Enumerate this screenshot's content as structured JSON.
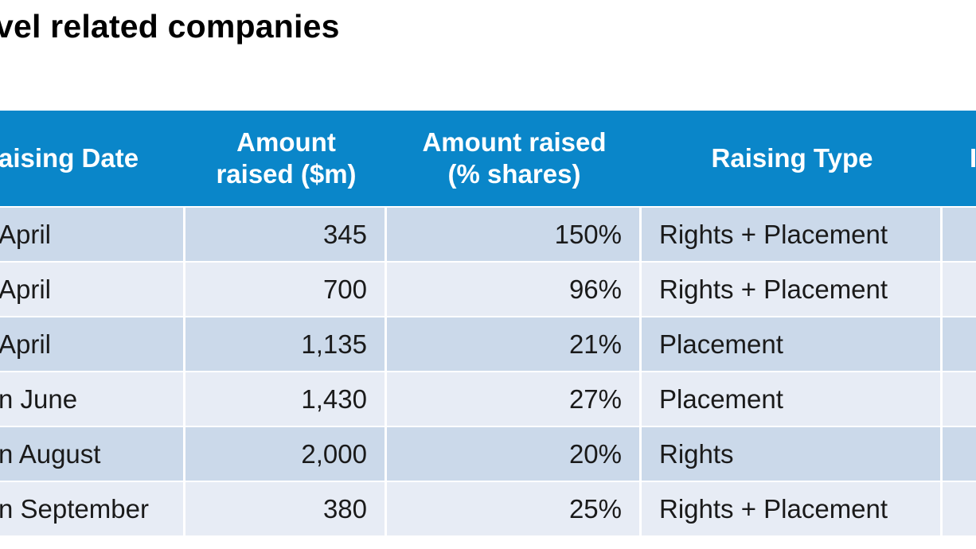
{
  "title": "vel related companies",
  "table": {
    "headers": [
      "aising Date",
      "Amount\nraised ($m)",
      "Amount raised\n(% shares)",
      "Raising Type",
      "I"
    ],
    "rows": [
      {
        "date": "April",
        "amount": "345",
        "pct": "150%",
        "type": "Rights + Placement",
        "extra": ""
      },
      {
        "date": "April",
        "amount": "700",
        "pct": "96%",
        "type": "Rights + Placement",
        "extra": ""
      },
      {
        "date": "April",
        "amount": "1,135",
        "pct": "21%",
        "type": "Placement",
        "extra": ""
      },
      {
        "date": "n June",
        "amount": "1,430",
        "pct": "27%",
        "type": "Placement",
        "extra": ""
      },
      {
        "date": "n August",
        "amount": "2,000",
        "pct": "20%",
        "type": "Rights",
        "extra": ""
      },
      {
        "date": "n September",
        "amount": "380",
        "pct": "25%",
        "type": "Rights + Placement",
        "extra": ""
      }
    ]
  },
  "colors": {
    "header_bg": "#0a86c9",
    "row_odd": "#cbd9ea",
    "row_even": "#e7ecf5"
  }
}
